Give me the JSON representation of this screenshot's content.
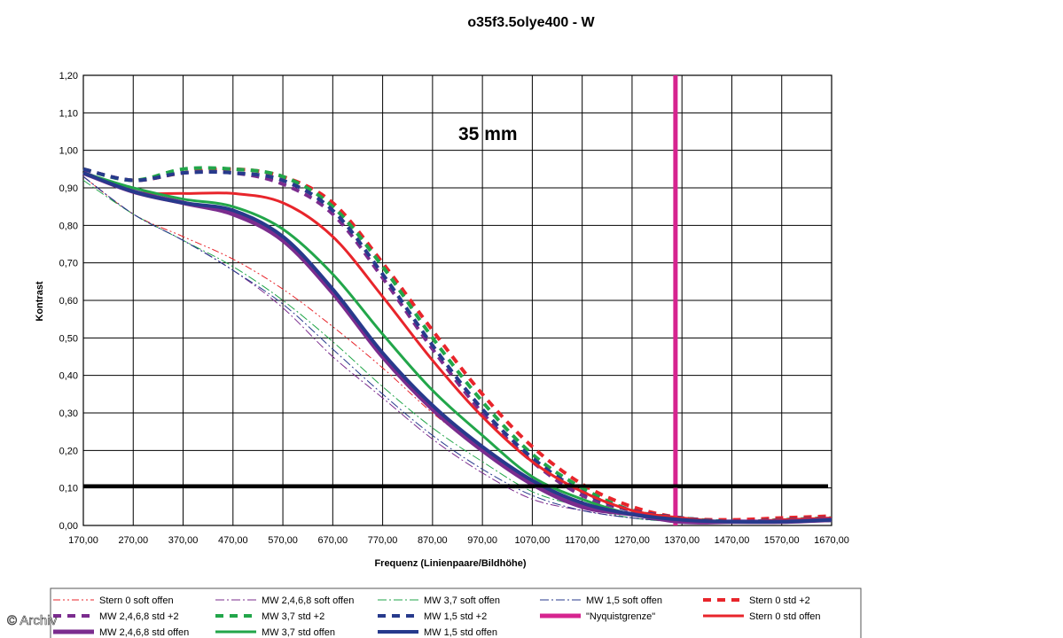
{
  "chart_data": {
    "type": "line",
    "title": "o35f3.5olye400 - W",
    "annotation": "35 mm",
    "xlabel": "Frequenz (Linienpaare/Bildhöhe)",
    "ylabel": "Kontrast",
    "xlim": [
      170,
      1670
    ],
    "ylim": [
      0,
      1.2
    ],
    "x_ticks": [
      "170,00",
      "270,00",
      "370,00",
      "470,00",
      "570,00",
      "670,00",
      "770,00",
      "870,00",
      "970,00",
      "1070,00",
      "1170,00",
      "1270,00",
      "1370,00",
      "1470,00",
      "1570,00",
      "1670,00"
    ],
    "y_ticks": [
      "0,00",
      "0,10",
      "0,20",
      "0,30",
      "0,40",
      "0,50",
      "0,60",
      "0,70",
      "0,80",
      "0,90",
      "1,00",
      "1,10",
      "1,20"
    ],
    "grid": true,
    "legend_position": "bottom",
    "x": [
      170,
      270,
      370,
      470,
      570,
      670,
      770,
      870,
      970,
      1070,
      1170,
      1270,
      1370,
      1470,
      1570,
      1670
    ],
    "series": [
      {
        "name": "Stern 0 soft offen",
        "color": "#e8252b",
        "style": "dashdotdot",
        "width": 1,
        "values": [
          0.93,
          0.83,
          0.77,
          0.71,
          0.63,
          0.53,
          0.42,
          0.3,
          0.2,
          0.11,
          0.06,
          0.03,
          0.015,
          0.01,
          0.01,
          0.015
        ]
      },
      {
        "name": "MW 2,4,6,8 soft offen",
        "color": "#7b2c8e",
        "style": "dashdot",
        "width": 1,
        "values": [
          0.93,
          0.83,
          0.76,
          0.68,
          0.58,
          0.45,
          0.34,
          0.23,
          0.14,
          0.07,
          0.04,
          0.02,
          0.01,
          0.01,
          0.01,
          0.01
        ]
      },
      {
        "name": "MW 3,7 soft offen",
        "color": "#22a64a",
        "style": "dashdot",
        "width": 1,
        "values": [
          0.92,
          0.83,
          0.76,
          0.69,
          0.6,
          0.49,
          0.37,
          0.26,
          0.17,
          0.09,
          0.05,
          0.02,
          0.01,
          0.01,
          0.01,
          0.01
        ]
      },
      {
        "name": "MW 1,5 soft offen",
        "color": "#273a8c",
        "style": "dashdot",
        "width": 1,
        "values": [
          0.93,
          0.83,
          0.76,
          0.68,
          0.59,
          0.47,
          0.35,
          0.24,
          0.15,
          0.08,
          0.04,
          0.02,
          0.01,
          0.01,
          0.01,
          0.01
        ]
      },
      {
        "name": "Stern 0 std +2",
        "color": "#e8252b",
        "style": "dash",
        "width": 4,
        "values": [
          0.95,
          0.92,
          0.94,
          0.95,
          0.93,
          0.86,
          0.7,
          0.52,
          0.35,
          0.21,
          0.11,
          0.05,
          0.02,
          0.015,
          0.02,
          0.025
        ]
      },
      {
        "name": "MW 2,4,6,8 std +2",
        "color": "#7b2c8e",
        "style": "dash",
        "width": 4,
        "values": [
          0.95,
          0.92,
          0.94,
          0.94,
          0.91,
          0.83,
          0.66,
          0.47,
          0.3,
          0.17,
          0.08,
          0.04,
          0.02,
          0.01,
          0.015,
          0.02
        ]
      },
      {
        "name": "MW 3,7 std +2",
        "color": "#22a64a",
        "style": "dash",
        "width": 4,
        "values": [
          0.95,
          0.92,
          0.95,
          0.95,
          0.93,
          0.85,
          0.69,
          0.5,
          0.33,
          0.19,
          0.1,
          0.04,
          0.02,
          0.01,
          0.015,
          0.02
        ]
      },
      {
        "name": "MW 1,5 std +2",
        "color": "#273a8c",
        "style": "dash",
        "width": 4,
        "values": [
          0.95,
          0.92,
          0.94,
          0.94,
          0.92,
          0.84,
          0.67,
          0.48,
          0.31,
          0.18,
          0.09,
          0.04,
          0.02,
          0.01,
          0.015,
          0.02
        ]
      },
      {
        "name": "\"Nyquistgrenze\"",
        "color": "#d6248f",
        "style": "vertical",
        "width": 5,
        "x_value": 1357
      },
      {
        "name": "Stern 0 std offen",
        "color": "#e8252b",
        "style": "solid",
        "width": 3,
        "values": [
          0.94,
          0.89,
          0.885,
          0.885,
          0.86,
          0.77,
          0.61,
          0.44,
          0.29,
          0.17,
          0.09,
          0.04,
          0.02,
          0.01,
          0.015,
          0.02
        ]
      },
      {
        "name": "MW 2,4,6,8 std offen",
        "color": "#7b2c8e",
        "style": "solid",
        "width": 5,
        "values": [
          0.94,
          0.89,
          0.86,
          0.83,
          0.76,
          0.62,
          0.45,
          0.31,
          0.2,
          0.11,
          0.05,
          0.03,
          0.01,
          0.01,
          0.01,
          0.015
        ]
      },
      {
        "name": "MW 3,7 std offen",
        "color": "#22a64a",
        "style": "solid",
        "width": 3,
        "values": [
          0.94,
          0.9,
          0.87,
          0.85,
          0.79,
          0.67,
          0.51,
          0.36,
          0.24,
          0.13,
          0.07,
          0.03,
          0.015,
          0.01,
          0.01,
          0.015
        ]
      },
      {
        "name": "MW 1,5 std offen",
        "color": "#273a8c",
        "style": "solid",
        "width": 4,
        "values": [
          0.94,
          0.89,
          0.86,
          0.84,
          0.77,
          0.63,
          0.46,
          0.32,
          0.21,
          0.12,
          0.06,
          0.03,
          0.015,
          0.01,
          0.01,
          0.015
        ]
      }
    ],
    "reference_line": {
      "y": 0.105,
      "color": "#000000"
    },
    "watermark": "© Archiv"
  }
}
